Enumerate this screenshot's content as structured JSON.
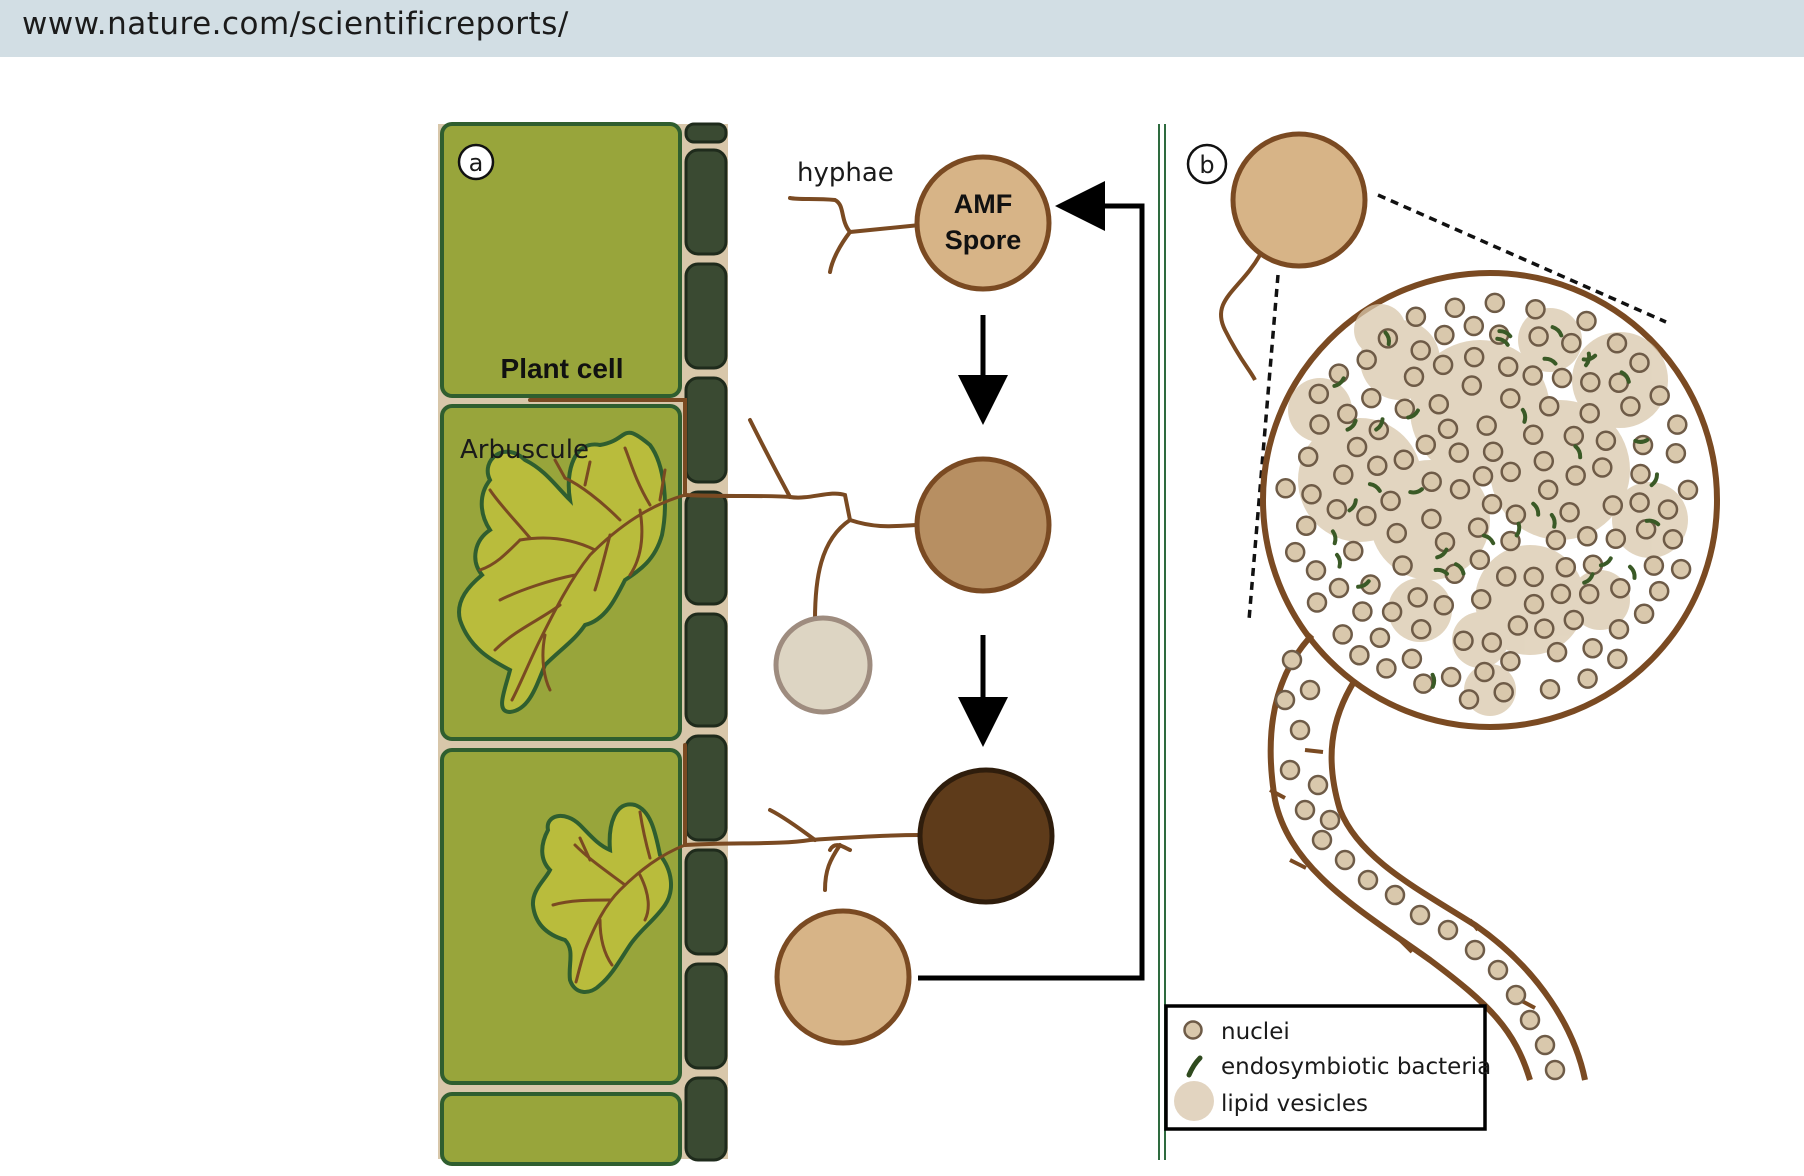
{
  "header": {
    "url": "www.nature.com/scientificreports/"
  },
  "panel_a": {
    "label": "a",
    "hyphae": "hyphae",
    "spore_line1": "AMF",
    "spore_line2": "Spore",
    "plant_cell": "Plant cell",
    "arbuscule": "Arbuscule"
  },
  "panel_b": {
    "label": "b"
  },
  "legend": {
    "nuclei": "nuclei",
    "bacteria": "endosymbiotic bacteria",
    "vesicles": "lipid vesicles"
  },
  "colors": {
    "cell_fill": "#98a53b",
    "cell_border": "#2f5e2f",
    "wall_dark": "#3a4a32",
    "hypha": "#7a4a22",
    "spore_light": "#d7b487",
    "spore_mid": "#b78f62",
    "spore_dark": "#5e3b1a",
    "spore_pale": "#ddd5c3"
  }
}
